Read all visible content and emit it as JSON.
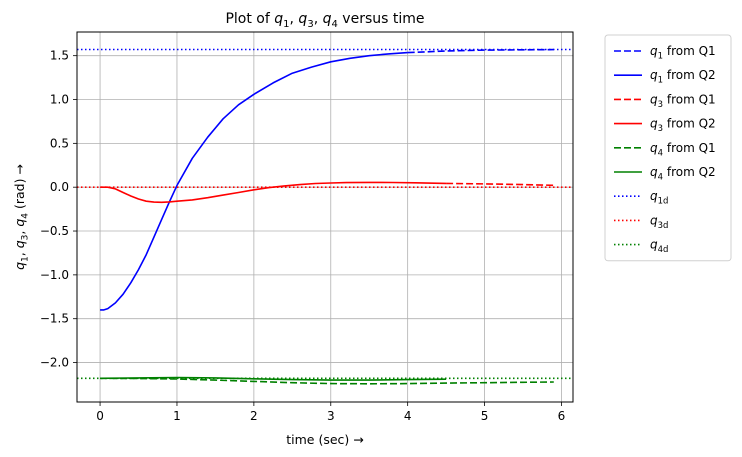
{
  "chart_data": {
    "type": "line",
    "title": "Plot of q1, q3, q4 versus time",
    "title_parts": [
      {
        "t": "Plot of ",
        "sub": false,
        "italic": false
      },
      {
        "t": "q",
        "sub": false,
        "italic": true
      },
      {
        "t": "1",
        "sub": true,
        "italic": false
      },
      {
        "t": ", ",
        "sub": false,
        "italic": false
      },
      {
        "t": "q",
        "sub": false,
        "italic": true
      },
      {
        "t": "3",
        "sub": true,
        "italic": false
      },
      {
        "t": ", ",
        "sub": false,
        "italic": false
      },
      {
        "t": "q",
        "sub": false,
        "italic": true
      },
      {
        "t": "4",
        "sub": true,
        "italic": false
      },
      {
        "t": " versus time",
        "sub": false,
        "italic": false
      }
    ],
    "xlabel": "time (sec) →",
    "ylabel": "q1, q3, q4 (rad) →",
    "ylabel_parts": [
      {
        "t": "q",
        "sub": false,
        "italic": true
      },
      {
        "t": "1",
        "sub": true,
        "italic": false
      },
      {
        "t": ", ",
        "sub": false,
        "italic": false
      },
      {
        "t": "q",
        "sub": false,
        "italic": true
      },
      {
        "t": "3",
        "sub": true,
        "italic": false
      },
      {
        "t": ", ",
        "sub": false,
        "italic": false
      },
      {
        "t": "q",
        "sub": false,
        "italic": true
      },
      {
        "t": "4",
        "sub": true,
        "italic": false
      },
      {
        "t": " (rad)  →",
        "sub": false,
        "italic": false
      }
    ],
    "xlim": [
      -0.3,
      6.15
    ],
    "ylim": [
      -2.45,
      1.77
    ],
    "xticks": [
      0,
      1,
      2,
      3,
      4,
      5,
      6
    ],
    "xtick_labels": [
      "0",
      "1",
      "2",
      "3",
      "4",
      "5",
      "6"
    ],
    "yticks": [
      1.5,
      1.0,
      0.5,
      0.0,
      -0.5,
      -1.0,
      -1.5,
      -2.0
    ],
    "ytick_labels": [
      "1.5",
      "1.0",
      "0.5",
      "0.0",
      "−0.5",
      "−1.0",
      "−1.5",
      "−2.0"
    ],
    "grid": true,
    "legend_position": "outside-right",
    "series": [
      {
        "name": "q1 from Q1",
        "sym": "q",
        "sub": "1",
        "suffix": " from Q1",
        "color": "#0000ff",
        "style": "dashed",
        "x": [
          4.0,
          4.5,
          5.0,
          5.5,
          5.9
        ],
        "y": [
          1.535,
          1.553,
          1.563,
          1.567,
          1.569
        ]
      },
      {
        "name": "q1 from Q2",
        "sym": "q",
        "sub": "1",
        "suffix": " from Q2",
        "color": "#0000ff",
        "style": "solid",
        "x": [
          0.0,
          0.05,
          0.1,
          0.2,
          0.3,
          0.4,
          0.5,
          0.6,
          0.7,
          0.8,
          0.9,
          1.0,
          1.2,
          1.4,
          1.6,
          1.8,
          2.0,
          2.25,
          2.5,
          2.75,
          3.0,
          3.25,
          3.5,
          3.75,
          4.0
        ],
        "y": [
          -1.4,
          -1.4,
          -1.385,
          -1.32,
          -1.22,
          -1.09,
          -0.94,
          -0.77,
          -0.57,
          -0.37,
          -0.17,
          0.02,
          0.33,
          0.57,
          0.78,
          0.94,
          1.06,
          1.19,
          1.3,
          1.37,
          1.43,
          1.47,
          1.5,
          1.52,
          1.535
        ]
      },
      {
        "name": "q3 from Q1",
        "sym": "q",
        "sub": "3",
        "suffix": " from Q1",
        "color": "#ff0000",
        "style": "dashed",
        "x": [
          4.5,
          5.0,
          5.5,
          5.9
        ],
        "y": [
          0.043,
          0.037,
          0.03,
          0.022
        ]
      },
      {
        "name": "q3 from Q2",
        "sym": "q",
        "sub": "3",
        "suffix": " from Q2",
        "color": "#ff0000",
        "style": "solid",
        "x": [
          0.0,
          0.1,
          0.2,
          0.3,
          0.4,
          0.5,
          0.6,
          0.7,
          0.8,
          0.9,
          1.0,
          1.2,
          1.4,
          1.6,
          1.8,
          2.0,
          2.2,
          2.4,
          2.6,
          2.8,
          3.0,
          3.2,
          3.5,
          3.8,
          4.1,
          4.5
        ],
        "y": [
          0.0,
          0.0,
          -0.02,
          -0.06,
          -0.1,
          -0.135,
          -0.16,
          -0.17,
          -0.172,
          -0.168,
          -0.16,
          -0.145,
          -0.12,
          -0.09,
          -0.06,
          -0.03,
          -0.005,
          0.015,
          0.03,
          0.042,
          0.048,
          0.052,
          0.055,
          0.054,
          0.05,
          0.043
        ]
      },
      {
        "name": "q4 from Q1",
        "sym": "q",
        "sub": "4",
        "suffix": " from Q1",
        "color": "#008000",
        "style": "dashed",
        "x": [
          0.0,
          0.5,
          1.0,
          1.5,
          2.0,
          2.5,
          3.0,
          3.5,
          4.0,
          4.5,
          5.0,
          5.5,
          5.9
        ],
        "y": [
          -2.18,
          -2.182,
          -2.188,
          -2.2,
          -2.215,
          -2.23,
          -2.24,
          -2.242,
          -2.24,
          -2.235,
          -2.23,
          -2.225,
          -2.222
        ]
      },
      {
        "name": "q4 from Q2",
        "sym": "q",
        "sub": "4",
        "suffix": " from Q2",
        "color": "#008000",
        "style": "solid",
        "x": [
          0.0,
          0.5,
          1.0,
          1.5,
          2.0,
          2.5,
          3.0,
          3.5,
          4.0,
          4.5
        ],
        "y": [
          -2.18,
          -2.175,
          -2.17,
          -2.175,
          -2.185,
          -2.195,
          -2.2,
          -2.2,
          -2.195,
          -2.19
        ]
      },
      {
        "name": "q1d",
        "sym": "q",
        "sub": "1d",
        "suffix": "",
        "color": "#0000ff",
        "style": "dotted",
        "x": [
          -0.3,
          6.15
        ],
        "y": [
          1.5708,
          1.5708
        ]
      },
      {
        "name": "q3d",
        "sym": "q",
        "sub": "3d",
        "suffix": "",
        "color": "#ff0000",
        "style": "dotted",
        "x": [
          -0.3,
          6.15
        ],
        "y": [
          0.0,
          0.0
        ]
      },
      {
        "name": "q4d",
        "sym": "q",
        "sub": "4d",
        "suffix": "",
        "color": "#008000",
        "style": "dotted",
        "x": [
          -0.3,
          6.15
        ],
        "y": [
          -2.18,
          -2.18
        ]
      }
    ]
  }
}
